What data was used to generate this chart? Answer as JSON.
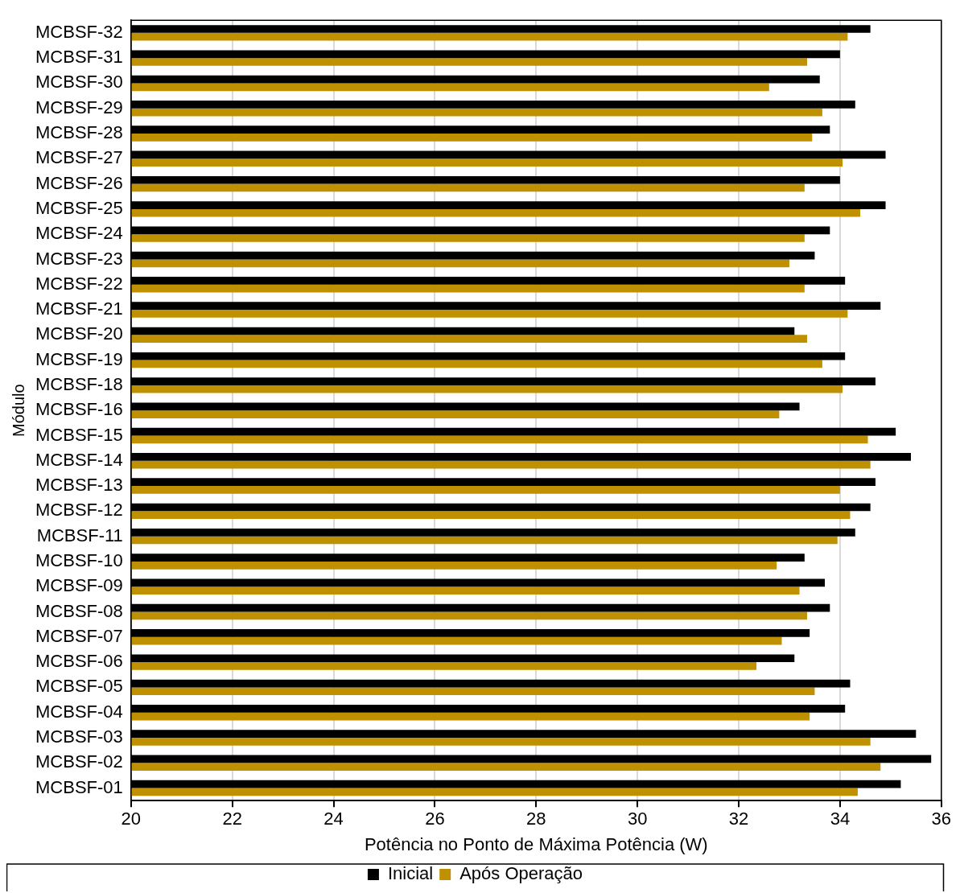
{
  "chart_data": {
    "type": "bar",
    "orientation": "horizontal",
    "xlabel": "Potência no Ponto de Máxima Potência (W)",
    "ylabel": "Módulo",
    "categories": [
      "MCBSF-32",
      "MCBSF-31",
      "MCBSF-30",
      "MCBSF-29",
      "MCBSF-28",
      "MCBSF-27",
      "MCBSF-26",
      "MCBSF-25",
      "MCBSF-24",
      "MCBSF-23",
      "MCBSF-22",
      "MCBSF-21",
      "MCBSF-20",
      "MCBSF-19",
      "MCBSF-18",
      "MCBSF-16",
      "MCBSF-15",
      "MCBSF-14",
      "MCBSF-13",
      "MCBSF-12",
      "MCBSF-11",
      "MCBSF-10",
      "MCBSF-09",
      "MCBSF-08",
      "MCBSF-07",
      "MCBSF-06",
      "MCBSF-05",
      "MCBSF-04",
      "MCBSF-03",
      "MCBSF-02",
      "MCBSF-01"
    ],
    "series": [
      {
        "name": "Inicial",
        "color": "#000000",
        "values": [
          34.6,
          34.0,
          33.6,
          34.3,
          33.8,
          34.9,
          34.0,
          34.9,
          33.8,
          33.5,
          34.1,
          34.8,
          33.1,
          34.1,
          34.7,
          33.2,
          35.1,
          35.4,
          34.7,
          34.6,
          34.3,
          33.3,
          33.7,
          33.8,
          33.4,
          33.1,
          34.2,
          34.1,
          35.5,
          35.8,
          35.2
        ]
      },
      {
        "name": "Após Operação",
        "color": "#bf9000",
        "values": [
          34.15,
          33.35,
          32.6,
          33.65,
          33.45,
          34.05,
          33.3,
          34.4,
          33.3,
          33.0,
          33.3,
          34.15,
          33.35,
          33.65,
          34.05,
          32.8,
          34.55,
          34.6,
          34.0,
          34.2,
          33.95,
          32.75,
          33.2,
          33.35,
          32.85,
          32.35,
          33.5,
          33.4,
          34.6,
          34.8,
          34.35
        ]
      }
    ],
    "xlim": [
      20,
      36
    ],
    "xticks": [
      20,
      22,
      24,
      26,
      28,
      30,
      32,
      34,
      36
    ],
    "grid": "x",
    "legend": "bottom"
  }
}
